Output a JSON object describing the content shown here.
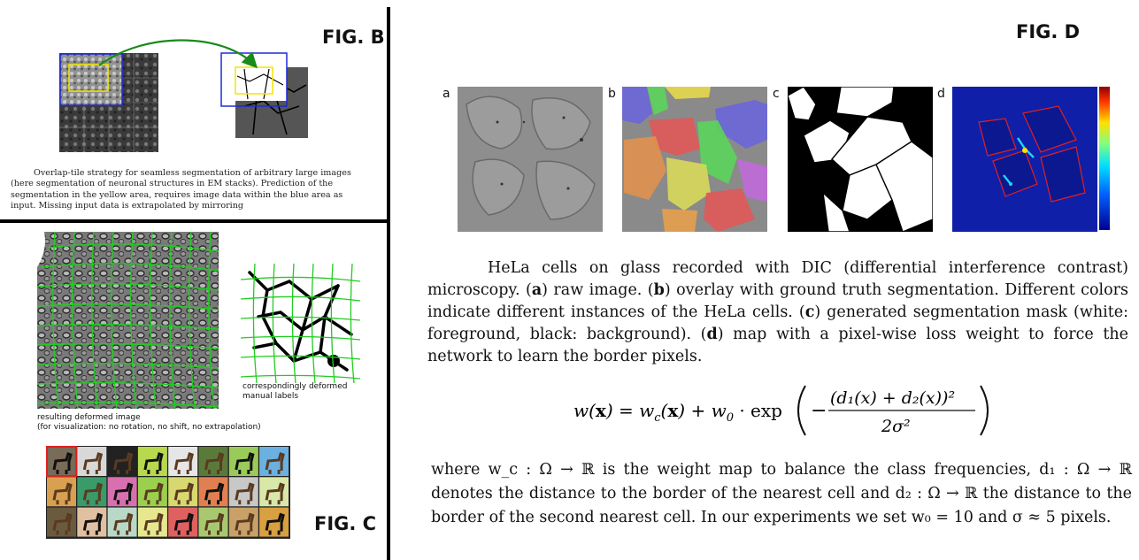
{
  "figB": {
    "label": "FIG. B",
    "caption": "Overlap-tile strategy for seamless segmentation of arbitrary large images (here segmentation of neuronal structures in EM stacks). Prediction of the segmentation in the yellow area, requires image data within the blue area as input. Missing input data is extrapolated by mirroring"
  },
  "figC": {
    "label": "FIG. C",
    "deformed_labels_caption_line1": "correspondingly deformed",
    "deformed_labels_caption_line2": "manual labels",
    "deformed_image_caption_line1": "resulting deformed image",
    "deformed_image_caption_line2": "(for visualization: no rotation, no shift, no extrapolation)"
  },
  "figD": {
    "label": "FIG. D",
    "panels": [
      "a",
      "b",
      "c",
      "d"
    ],
    "caption_intro": "HeLa cells on glass recorded with DIC (differential interference contrast) microscopy. (",
    "caption_a_letter": "a",
    "caption_a_text": ") raw image. (",
    "caption_b_letter": "b",
    "caption_b_text": ") overlay with ground truth segmentation. Different colors indicate different instances of the HeLa cells. (",
    "caption_c_letter": "c",
    "caption_c_text": ") generated segmentation mask (white: foreground, black: background). (",
    "caption_d_letter": "d",
    "caption_d_text": ") map with a pixel-wise loss weight to force the network to learn the border pixels.",
    "equation": {
      "lhs": "w(x) = w",
      "sub_c": "c",
      "mid": "(x) + w",
      "sub_0": "0",
      "exp": "· exp",
      "numerator": "(d₁(x) + d₂(x))²",
      "denominator": "2σ²"
    },
    "where_text": "where w_c : Ω → ℝ is the weight map to balance the class frequencies, d₁ : Ω → ℝ denotes the distance to the border of the nearest cell and d₂ : Ω → ℝ the distance to the border of the second nearest cell. In our experiments we set w₀ = 10 and σ ≈ 5 pixels."
  },
  "colors": {
    "overlap_arrow": "#1a8a1a",
    "blue_box": "#1f2bd6",
    "yellow_box": "#f2e600",
    "deform_grid": "#22cc22",
    "weight_map_bg": "#0f1fa8",
    "border_red": "#e02020"
  }
}
